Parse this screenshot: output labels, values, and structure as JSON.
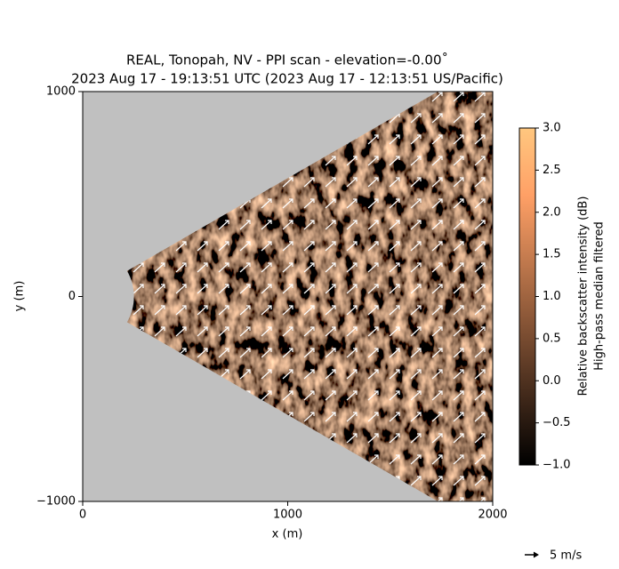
{
  "chart_data": {
    "type": "ppi",
    "title": [
      "REAL, Tonopah, NV - PPI scan - elevation=-0.00˚",
      "2023 Aug 17 - 19:13:51 UTC (2023 Aug 17 - 12:13:51 US/Pacific)"
    ],
    "x_label": "x (m)",
    "y_label": "y (m)",
    "xlim": [
      0,
      2000
    ],
    "xticks": [
      0,
      1000,
      2000
    ],
    "ylim": [
      -1000,
      1000
    ],
    "yticks": [
      {
        "value": -1000,
        "label": "−1000"
      },
      0,
      1000
    ],
    "background": "#c0c0c0",
    "scan": {
      "r_min": 250,
      "r_max": 2400,
      "half_angle_deg": 30
    },
    "colorbar": {
      "label": [
        "Relative backscatter intensity (dB)",
        "High-pass median filtered"
      ],
      "lim": [
        -1,
        3
      ],
      "ticks": [
        {
          "value": -1,
          "label": "−1.0"
        },
        {
          "value": -0.5,
          "label": "−0.5"
        },
        {
          "value": 0,
          "label": "0.0"
        },
        {
          "value": 0.5,
          "label": "0.5"
        },
        {
          "value": 1,
          "label": "1.0"
        },
        {
          "value": 1.5,
          "label": "1.5"
        },
        {
          "value": 2,
          "label": "2.0"
        },
        {
          "value": 2.5,
          "label": "2.5"
        },
        {
          "value": 3,
          "label": "3.0"
        }
      ],
      "colormap": "copper"
    },
    "quiver_key": {
      "label": "5 m/s"
    }
  }
}
